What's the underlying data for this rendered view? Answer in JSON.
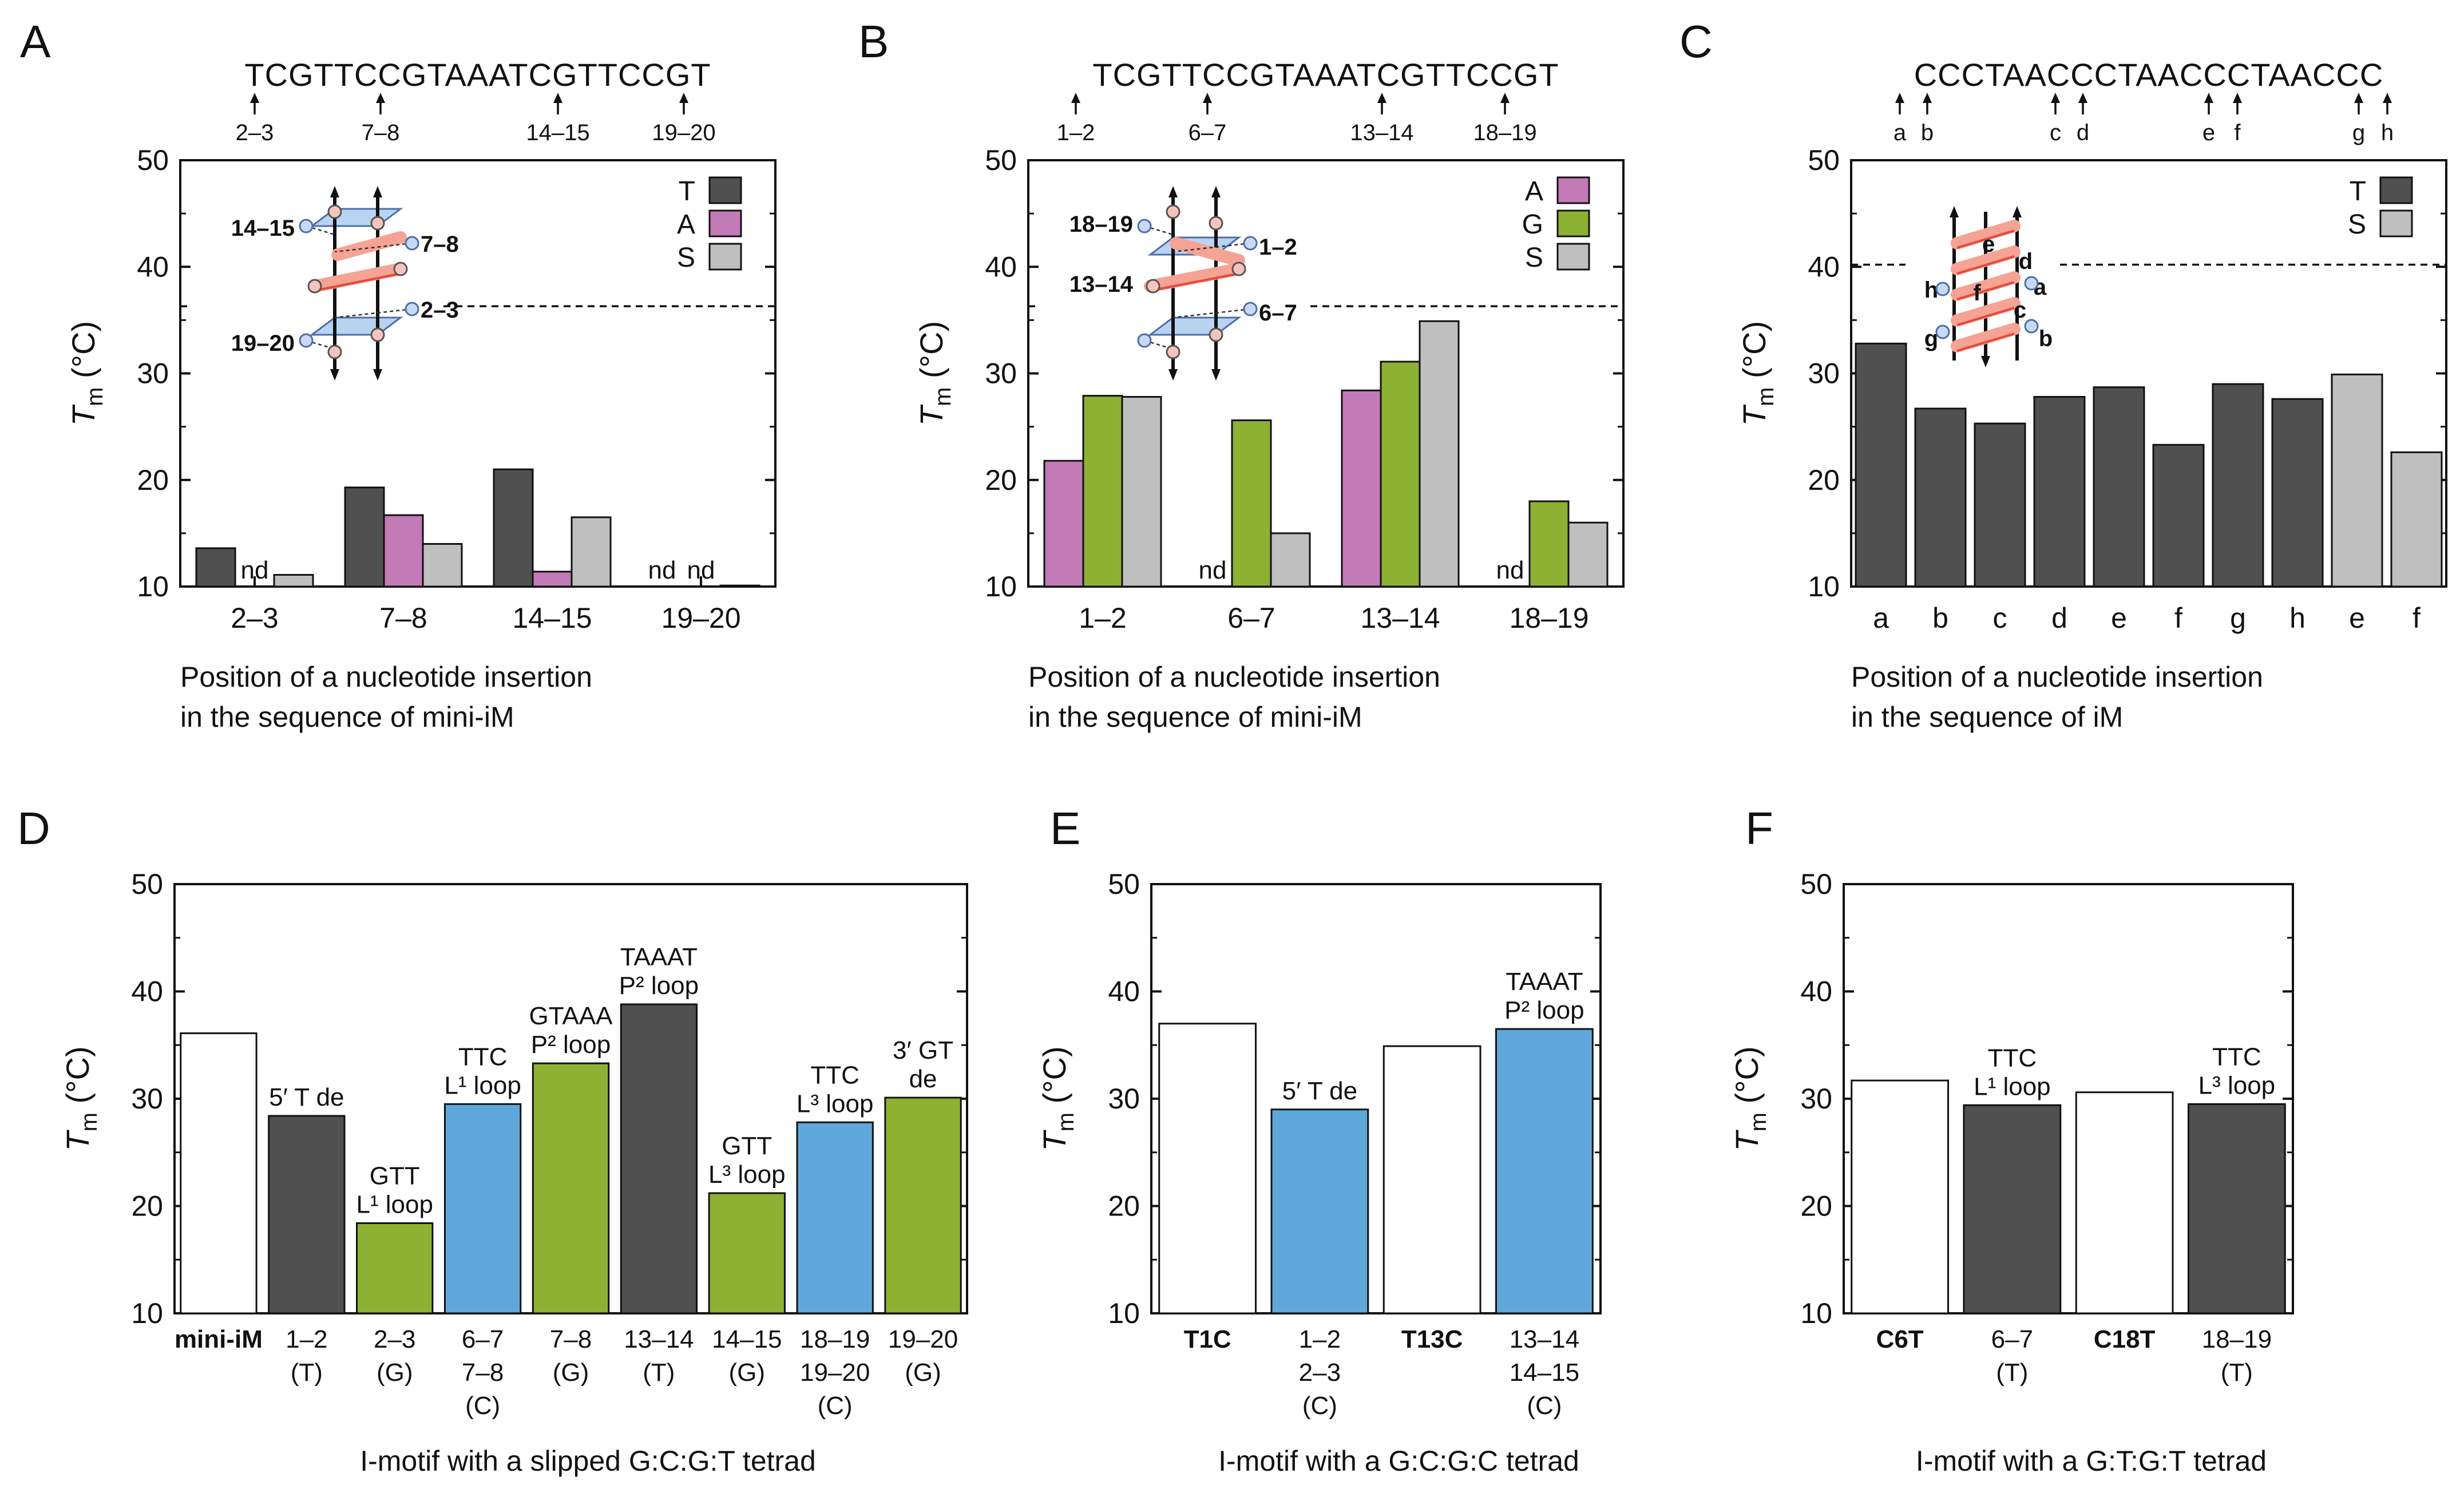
{
  "colors": {
    "T": "#505050",
    "A": "#c27bb6",
    "G": "#8db133",
    "S": "#bfbfbf",
    "blue": "#5ea8dc",
    "white": "#ffffff",
    "red": "#e8493a"
  },
  "chart_data": [
    {
      "id": "A",
      "type": "bar",
      "panel_letter": "A",
      "sequence": "TCGTTCCGTAAATCGTTCCGT",
      "arrow_labels": [
        "2–3",
        "7–8",
        "14–15",
        "19–20"
      ],
      "ylim": [
        10,
        50
      ],
      "yticks": [
        10,
        20,
        30,
        40,
        50
      ],
      "dashed_line": 36.3,
      "ylabel_main": "T",
      "ylabel_sub": "m",
      "ylabel_unit": " (°C)",
      "xlabel": [
        "Position of a nucleotide insertion",
        "in the sequence of mini-iM"
      ],
      "legend": [
        {
          "key": "T",
          "label": "T"
        },
        {
          "key": "A",
          "label": "A"
        },
        {
          "key": "S",
          "label": "S"
        }
      ],
      "inset_labels": [
        "14–15",
        "7–8",
        "19–20",
        "2–3"
      ],
      "groups": [
        {
          "label": "2–3",
          "bars": [
            {
              "s": "T",
              "v": 13.6
            },
            {
              "s": "A",
              "v": null
            },
            {
              "s": "S",
              "v": 11.1
            }
          ]
        },
        {
          "label": "7–8",
          "bars": [
            {
              "s": "T",
              "v": 19.3
            },
            {
              "s": "A",
              "v": 16.7
            },
            {
              "s": "S",
              "v": 14.0
            }
          ]
        },
        {
          "label": "14–15",
          "bars": [
            {
              "s": "T",
              "v": 21.0
            },
            {
              "s": "A",
              "v": 11.4
            },
            {
              "s": "S",
              "v": 16.5
            }
          ]
        },
        {
          "label": "19–20",
          "bars": [
            {
              "s": "T",
              "v": null
            },
            {
              "s": "A",
              "v": null
            },
            {
              "s": "S",
              "v": 10.1
            }
          ]
        }
      ],
      "nd_label": "nd"
    },
    {
      "id": "B",
      "type": "bar",
      "panel_letter": "B",
      "sequence": "TCGTTCCGTAAATCGTTCCGT",
      "arrow_labels": [
        "1–2",
        "6–7",
        "13–14",
        "18–19"
      ],
      "ylim": [
        10,
        50
      ],
      "yticks": [
        10,
        20,
        30,
        40,
        50
      ],
      "dashed_line": 36.3,
      "ylabel_main": "T",
      "ylabel_sub": "m",
      "ylabel_unit": " (°C)",
      "xlabel": [
        "Position of a nucleotide insertion",
        "in the sequence of mini-iM"
      ],
      "legend": [
        {
          "key": "A",
          "label": "A"
        },
        {
          "key": "G",
          "label": "G"
        },
        {
          "key": "S",
          "label": "S"
        }
      ],
      "inset_labels": [
        "18–19",
        "1–2",
        "13–14",
        "6–7"
      ],
      "groups": [
        {
          "label": "1–2",
          "bars": [
            {
              "s": "A",
              "v": 21.8
            },
            {
              "s": "G",
              "v": 27.9
            },
            {
              "s": "S",
              "v": 27.8
            }
          ]
        },
        {
          "label": "6–7",
          "bars": [
            {
              "s": "A",
              "v": null
            },
            {
              "s": "G",
              "v": 25.6
            },
            {
              "s": "S",
              "v": 15.0
            }
          ]
        },
        {
          "label": "13–14",
          "bars": [
            {
              "s": "A",
              "v": 28.4
            },
            {
              "s": "G",
              "v": 31.1
            },
            {
              "s": "S",
              "v": 34.9
            }
          ]
        },
        {
          "label": "18–19",
          "bars": [
            {
              "s": "A",
              "v": null
            },
            {
              "s": "G",
              "v": 18.0
            },
            {
              "s": "S",
              "v": 16.0
            }
          ]
        }
      ],
      "nd_label": "nd"
    },
    {
      "id": "C",
      "type": "bar",
      "panel_letter": "C",
      "sequence": "CCCTAACCCTAACCCTAACCC",
      "arrow_labels": [
        "a",
        "b",
        "c",
        "d",
        "e",
        "f",
        "g",
        "h"
      ],
      "ylim": [
        10,
        50
      ],
      "yticks": [
        10,
        20,
        30,
        40,
        50
      ],
      "dashed_line": 40.2,
      "ylabel_main": "T",
      "ylabel_sub": "m",
      "ylabel_unit": " (°C)",
      "xlabel": [
        "Position of a nucleotide insertion",
        "in the sequence of iM"
      ],
      "legend": [
        {
          "key": "T",
          "label": "T"
        },
        {
          "key": "S",
          "label": "S"
        }
      ],
      "inset_labels": [
        "e",
        "d",
        "h",
        "a",
        "f",
        "c",
        "g",
        "b"
      ],
      "categories": [
        "a",
        "b",
        "c",
        "d",
        "e",
        "f",
        "g",
        "h",
        "e",
        "f"
      ],
      "series_keys": [
        "T",
        "T",
        "T",
        "T",
        "T",
        "T",
        "T",
        "T",
        "S",
        "S"
      ],
      "values": [
        32.8,
        26.7,
        25.3,
        27.8,
        28.7,
        23.3,
        29.0,
        27.6,
        29.9,
        22.6
      ]
    },
    {
      "id": "D",
      "type": "bar",
      "panel_letter": "D",
      "ylim": [
        10,
        50
      ],
      "yticks": [
        10,
        20,
        30,
        40,
        50
      ],
      "ylabel_main": "T",
      "ylabel_sub": "m",
      "ylabel_unit": " (°C)",
      "xlabel": [
        "I-motif with a slipped G:C:G:T tetrad"
      ],
      "bars": [
        {
          "cat": [
            "mini-iM"
          ],
          "bold": true,
          "v": 36.1,
          "c": "white",
          "ann": []
        },
        {
          "cat": [
            "1–2",
            "(T)"
          ],
          "v": 28.4,
          "c": "T",
          "ann": [
            "5′ T de"
          ]
        },
        {
          "cat": [
            "2–3",
            "(G)"
          ],
          "v": 18.4,
          "c": "G",
          "ann": [
            "GTT",
            "L¹ loop"
          ]
        },
        {
          "cat": [
            "6–7",
            "7–8",
            "(C)"
          ],
          "v": 29.5,
          "c": "blue",
          "ann": [
            "TTC",
            "L¹ loop"
          ]
        },
        {
          "cat": [
            "7–8",
            "(G)"
          ],
          "v": 33.3,
          "c": "G",
          "ann": [
            "GTAAA",
            "P² loop"
          ]
        },
        {
          "cat": [
            "13–14",
            "(T)"
          ],
          "v": 38.8,
          "c": "T",
          "ann": [
            "TAAAT",
            "P² loop"
          ]
        },
        {
          "cat": [
            "14–15",
            "(G)"
          ],
          "v": 21.2,
          "c": "G",
          "ann": [
            "GTT",
            "L³ loop"
          ]
        },
        {
          "cat": [
            "18–19",
            "19–20",
            "(C)"
          ],
          "v": 27.8,
          "c": "blue",
          "ann": [
            "TTC",
            "L³ loop"
          ]
        },
        {
          "cat": [
            "19–20",
            "(G)"
          ],
          "v": 30.1,
          "c": "G",
          "ann": [
            "3′ GT",
            "de"
          ]
        }
      ]
    },
    {
      "id": "E",
      "type": "bar",
      "panel_letter": "E",
      "ylim": [
        10,
        50
      ],
      "yticks": [
        10,
        20,
        30,
        40,
        50
      ],
      "ylabel_main": "T",
      "ylabel_sub": "m",
      "ylabel_unit": " (°C)",
      "xlabel": [
        "I-motif with a G:C:G:C tetrad"
      ],
      "bars": [
        {
          "cat": [
            "T1C"
          ],
          "bold": true,
          "v": 37.0,
          "c": "white",
          "ann": []
        },
        {
          "cat": [
            "1–2",
            "2–3",
            "(C)"
          ],
          "v": 29.0,
          "c": "blue",
          "ann": [
            "5′ T de"
          ]
        },
        {
          "cat": [
            "T13C"
          ],
          "bold": true,
          "v": 34.9,
          "c": "white",
          "ann": []
        },
        {
          "cat": [
            "13–14",
            "14–15",
            "(C)"
          ],
          "v": 36.5,
          "c": "blue",
          "ann": [
            "TAAAT",
            "P² loop"
          ]
        }
      ]
    },
    {
      "id": "F",
      "type": "bar",
      "panel_letter": "F",
      "ylim": [
        10,
        50
      ],
      "yticks": [
        10,
        20,
        30,
        40,
        50
      ],
      "ylabel_main": "T",
      "ylabel_sub": "m",
      "ylabel_unit": " (°C)",
      "xlabel": [
        "I-motif with a G:T:G:T tetrad"
      ],
      "bars": [
        {
          "cat": [
            "C6T"
          ],
          "bold": true,
          "v": 31.7,
          "c": "white",
          "ann": []
        },
        {
          "cat": [
            "6–7",
            "(T)"
          ],
          "v": 29.4,
          "c": "T",
          "ann": [
            "TTC",
            "L¹ loop"
          ]
        },
        {
          "cat": [
            "C18T"
          ],
          "bold": true,
          "v": 30.6,
          "c": "white",
          "ann": []
        },
        {
          "cat": [
            "18–19",
            "(T)"
          ],
          "v": 29.5,
          "c": "T",
          "ann": [
            "TTC",
            "L³ loop"
          ]
        }
      ]
    }
  ]
}
